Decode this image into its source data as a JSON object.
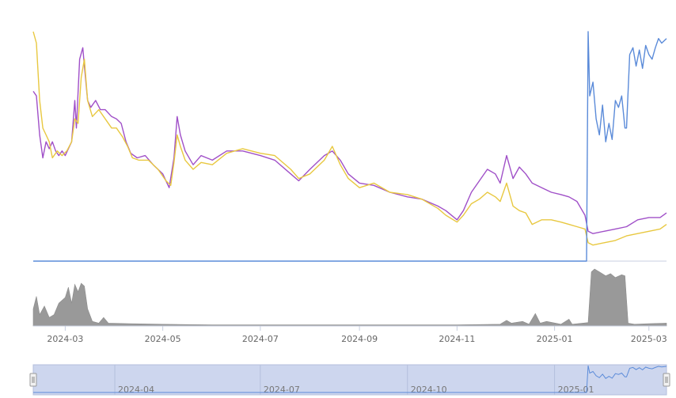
{
  "chart_data": {
    "type": "line",
    "title": "",
    "xlabel": "",
    "ylabel": "",
    "x_range": [
      "2024-02-10",
      "2025-03-12"
    ],
    "x_ticks": [
      "2024-03",
      "2024-05",
      "2024-07",
      "2024-09",
      "2024-11",
      "2025-01",
      "2025-03"
    ],
    "navigator_ticks": [
      "2024-04",
      "2024-07",
      "2024-10",
      "2025-01"
    ],
    "grid": false,
    "legend": "none",
    "ylim": [
      0,
      100
    ],
    "series": [
      {
        "color": "#a050c8",
        "points": [
          [
            "2024-02-10",
            74
          ],
          [
            "2024-02-12",
            72
          ],
          [
            "2024-02-14",
            55
          ],
          [
            "2024-02-16",
            45
          ],
          [
            "2024-02-18",
            52
          ],
          [
            "2024-02-20",
            49
          ],
          [
            "2024-02-22",
            52
          ],
          [
            "2024-02-24",
            48
          ],
          [
            "2024-02-26",
            46
          ],
          [
            "2024-02-28",
            48
          ],
          [
            "2024-03-01",
            46
          ],
          [
            "2024-03-03",
            49
          ],
          [
            "2024-03-05",
            52
          ],
          [
            "2024-03-07",
            70
          ],
          [
            "2024-03-08",
            58
          ],
          [
            "2024-03-10",
            88
          ],
          [
            "2024-03-12",
            93
          ],
          [
            "2024-03-13",
            85
          ],
          [
            "2024-03-15",
            70
          ],
          [
            "2024-03-17",
            67
          ],
          [
            "2024-03-20",
            70
          ],
          [
            "2024-03-23",
            66
          ],
          [
            "2024-03-26",
            66
          ],
          [
            "2024-03-30",
            63
          ],
          [
            "2024-04-02",
            62
          ],
          [
            "2024-04-05",
            60
          ],
          [
            "2024-04-08",
            52
          ],
          [
            "2024-04-11",
            47
          ],
          [
            "2024-04-15",
            45
          ],
          [
            "2024-04-20",
            46
          ],
          [
            "2024-04-25",
            42
          ],
          [
            "2024-05-01",
            38
          ],
          [
            "2024-05-05",
            32
          ],
          [
            "2024-05-08",
            45
          ],
          [
            "2024-05-10",
            63
          ],
          [
            "2024-05-12",
            55
          ],
          [
            "2024-05-15",
            48
          ],
          [
            "2024-05-20",
            42
          ],
          [
            "2024-05-25",
            46
          ],
          [
            "2024-06-01",
            44
          ],
          [
            "2024-06-10",
            48
          ],
          [
            "2024-06-20",
            48
          ],
          [
            "2024-07-01",
            46
          ],
          [
            "2024-07-10",
            44
          ],
          [
            "2024-07-20",
            38
          ],
          [
            "2024-07-25",
            35
          ],
          [
            "2024-08-01",
            40
          ],
          [
            "2024-08-10",
            46
          ],
          [
            "2024-08-15",
            48
          ],
          [
            "2024-08-20",
            44
          ],
          [
            "2024-08-25",
            38
          ],
          [
            "2024-09-01",
            34
          ],
          [
            "2024-09-10",
            33
          ],
          [
            "2024-09-20",
            30
          ],
          [
            "2024-10-01",
            28
          ],
          [
            "2024-10-10",
            27
          ],
          [
            "2024-10-20",
            24
          ],
          [
            "2024-10-25",
            22
          ],
          [
            "2024-11-01",
            18
          ],
          [
            "2024-11-05",
            22
          ],
          [
            "2024-11-10",
            30
          ],
          [
            "2024-11-15",
            35
          ],
          [
            "2024-11-20",
            40
          ],
          [
            "2024-11-25",
            38
          ],
          [
            "2024-11-28",
            34
          ],
          [
            "2024-12-02",
            46
          ],
          [
            "2024-12-06",
            36
          ],
          [
            "2024-12-10",
            41
          ],
          [
            "2024-12-14",
            38
          ],
          [
            "2024-12-18",
            34
          ],
          [
            "2024-12-24",
            32
          ],
          [
            "2024-12-30",
            30
          ],
          [
            "2025-01-05",
            29
          ],
          [
            "2025-01-10",
            28
          ],
          [
            "2025-01-15",
            26
          ],
          [
            "2025-01-20",
            20
          ],
          [
            "2025-01-22",
            13
          ],
          [
            "2025-01-25",
            12
          ],
          [
            "2025-02-01",
            13
          ],
          [
            "2025-02-08",
            14
          ],
          [
            "2025-02-15",
            15
          ],
          [
            "2025-02-22",
            18
          ],
          [
            "2025-03-01",
            19
          ],
          [
            "2025-03-08",
            19
          ],
          [
            "2025-03-12",
            21
          ]
        ]
      },
      {
        "color": "#e8c840",
        "points": [
          [
            "2024-02-10",
            100
          ],
          [
            "2024-02-12",
            95
          ],
          [
            "2024-02-14",
            70
          ],
          [
            "2024-02-16",
            58
          ],
          [
            "2024-02-18",
            55
          ],
          [
            "2024-02-20",
            52
          ],
          [
            "2024-02-22",
            45
          ],
          [
            "2024-02-25",
            48
          ],
          [
            "2024-02-28",
            46
          ],
          [
            "2024-03-02",
            48
          ],
          [
            "2024-03-05",
            52
          ],
          [
            "2024-03-07",
            62
          ],
          [
            "2024-03-09",
            60
          ],
          [
            "2024-03-11",
            80
          ],
          [
            "2024-03-13",
            88
          ],
          [
            "2024-03-15",
            70
          ],
          [
            "2024-03-18",
            63
          ],
          [
            "2024-03-22",
            66
          ],
          [
            "2024-03-26",
            62
          ],
          [
            "2024-03-30",
            58
          ],
          [
            "2024-04-02",
            58
          ],
          [
            "2024-04-06",
            54
          ],
          [
            "2024-04-09",
            50
          ],
          [
            "2024-04-12",
            45
          ],
          [
            "2024-04-16",
            44
          ],
          [
            "2024-04-22",
            44
          ],
          [
            "2024-04-28",
            40
          ],
          [
            "2024-05-03",
            35
          ],
          [
            "2024-05-06",
            33
          ],
          [
            "2024-05-08",
            43
          ],
          [
            "2024-05-10",
            55
          ],
          [
            "2024-05-12",
            50
          ],
          [
            "2024-05-15",
            44
          ],
          [
            "2024-05-20",
            40
          ],
          [
            "2024-05-25",
            43
          ],
          [
            "2024-06-01",
            42
          ],
          [
            "2024-06-10",
            47
          ],
          [
            "2024-06-20",
            49
          ],
          [
            "2024-07-01",
            47
          ],
          [
            "2024-07-10",
            46
          ],
          [
            "2024-07-20",
            40
          ],
          [
            "2024-07-25",
            36
          ],
          [
            "2024-08-01",
            38
          ],
          [
            "2024-08-10",
            44
          ],
          [
            "2024-08-15",
            50
          ],
          [
            "2024-08-20",
            42
          ],
          [
            "2024-08-25",
            36
          ],
          [
            "2024-09-01",
            32
          ],
          [
            "2024-09-10",
            34
          ],
          [
            "2024-09-20",
            30
          ],
          [
            "2024-10-01",
            29
          ],
          [
            "2024-10-10",
            27
          ],
          [
            "2024-10-20",
            23
          ],
          [
            "2024-10-25",
            20
          ],
          [
            "2024-11-01",
            17
          ],
          [
            "2024-11-05",
            20
          ],
          [
            "2024-11-10",
            25
          ],
          [
            "2024-11-15",
            27
          ],
          [
            "2024-11-20",
            30
          ],
          [
            "2024-11-25",
            28
          ],
          [
            "2024-11-28",
            26
          ],
          [
            "2024-12-02",
            34
          ],
          [
            "2024-12-06",
            24
          ],
          [
            "2024-12-10",
            22
          ],
          [
            "2024-12-14",
            21
          ],
          [
            "2024-12-18",
            16
          ],
          [
            "2024-12-24",
            18
          ],
          [
            "2024-12-30",
            18
          ],
          [
            "2025-01-05",
            17
          ],
          [
            "2025-01-10",
            16
          ],
          [
            "2025-01-15",
            15
          ],
          [
            "2025-01-20",
            14
          ],
          [
            "2025-01-22",
            8
          ],
          [
            "2025-01-25",
            7
          ],
          [
            "2025-02-01",
            8
          ],
          [
            "2025-02-08",
            9
          ],
          [
            "2025-02-15",
            11
          ],
          [
            "2025-02-22",
            12
          ],
          [
            "2025-03-01",
            13
          ],
          [
            "2025-03-08",
            14
          ],
          [
            "2025-03-12",
            16
          ]
        ]
      },
      {
        "color": "#5b8bd9",
        "points": [
          [
            "2024-02-10",
            0
          ],
          [
            "2025-01-20",
            0
          ],
          [
            "2025-01-21",
            0
          ],
          [
            "2025-01-22",
            100
          ],
          [
            "2025-01-23",
            72
          ],
          [
            "2025-01-25",
            78
          ],
          [
            "2025-01-27",
            62
          ],
          [
            "2025-01-29",
            55
          ],
          [
            "2025-01-31",
            68
          ],
          [
            "2025-02-02",
            52
          ],
          [
            "2025-02-04",
            60
          ],
          [
            "2025-02-06",
            53
          ],
          [
            "2025-02-08",
            70
          ],
          [
            "2025-02-10",
            67
          ],
          [
            "2025-02-12",
            72
          ],
          [
            "2025-02-14",
            58
          ],
          [
            "2025-02-15",
            58
          ],
          [
            "2025-02-17",
            90
          ],
          [
            "2025-02-19",
            93
          ],
          [
            "2025-02-21",
            85
          ],
          [
            "2025-02-23",
            92
          ],
          [
            "2025-02-25",
            84
          ],
          [
            "2025-02-27",
            94
          ],
          [
            "2025-03-01",
            90
          ],
          [
            "2025-03-03",
            88
          ],
          [
            "2025-03-05",
            93
          ],
          [
            "2025-03-07",
            97
          ],
          [
            "2025-03-09",
            95
          ],
          [
            "2025-03-12",
            97
          ]
        ]
      }
    ],
    "volume": {
      "color": "#999999",
      "points": [
        [
          "2024-02-10",
          30
        ],
        [
          "2024-02-12",
          52
        ],
        [
          "2024-02-14",
          20
        ],
        [
          "2024-02-17",
          35
        ],
        [
          "2024-02-20",
          15
        ],
        [
          "2024-02-23",
          20
        ],
        [
          "2024-02-26",
          40
        ],
        [
          "2024-03-01",
          50
        ],
        [
          "2024-03-03",
          68
        ],
        [
          "2024-03-05",
          40
        ],
        [
          "2024-03-07",
          73
        ],
        [
          "2024-03-09",
          60
        ],
        [
          "2024-03-11",
          75
        ],
        [
          "2024-03-13",
          70
        ],
        [
          "2024-03-15",
          30
        ],
        [
          "2024-03-18",
          8
        ],
        [
          "2024-03-22",
          5
        ],
        [
          "2024-03-25",
          15
        ],
        [
          "2024-03-28",
          5
        ],
        [
          "2024-04-10",
          4
        ],
        [
          "2024-05-01",
          3
        ],
        [
          "2024-06-01",
          2
        ],
        [
          "2024-07-01",
          2
        ],
        [
          "2024-08-01",
          2
        ],
        [
          "2024-09-01",
          2
        ],
        [
          "2024-10-01",
          2
        ],
        [
          "2024-11-01",
          2
        ],
        [
          "2024-11-28",
          3
        ],
        [
          "2024-12-02",
          10
        ],
        [
          "2024-12-05",
          5
        ],
        [
          "2024-12-12",
          8
        ],
        [
          "2024-12-16",
          3
        ],
        [
          "2024-12-20",
          22
        ],
        [
          "2024-12-23",
          5
        ],
        [
          "2024-12-27",
          8
        ],
        [
          "2025-01-05",
          3
        ],
        [
          "2025-01-10",
          12
        ],
        [
          "2025-01-12",
          3
        ],
        [
          "2025-01-22",
          6
        ],
        [
          "2025-01-24",
          95
        ],
        [
          "2025-01-26",
          100
        ],
        [
          "2025-01-29",
          95
        ],
        [
          "2025-02-02",
          88
        ],
        [
          "2025-02-05",
          92
        ],
        [
          "2025-02-08",
          85
        ],
        [
          "2025-02-12",
          90
        ],
        [
          "2025-02-14",
          88
        ],
        [
          "2025-02-16",
          5
        ],
        [
          "2025-02-20",
          3
        ],
        [
          "2025-03-01",
          4
        ],
        [
          "2025-03-12",
          5
        ]
      ]
    },
    "navigator": {
      "series_color": "#5b8bd9",
      "selection": "full range"
    }
  }
}
